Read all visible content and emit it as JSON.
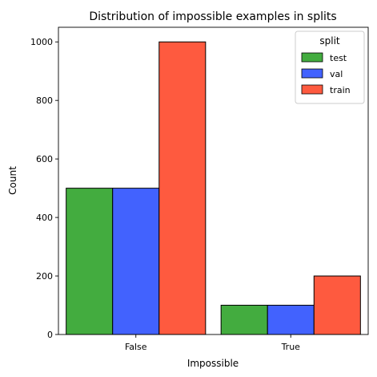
{
  "chart_data": {
    "type": "bar",
    "title": "Distribution of impossible examples in splits",
    "xlabel": "Impossible",
    "ylabel": "Count",
    "categories": [
      "False",
      "True"
    ],
    "series": [
      {
        "name": "test",
        "values": [
          500,
          100
        ],
        "color": "#43ac3f"
      },
      {
        "name": "val",
        "values": [
          500,
          100
        ],
        "color": "#4262fe"
      },
      {
        "name": "train",
        "values": [
          1000,
          200
        ],
        "color": "#fe5a3f"
      }
    ],
    "ylim": [
      0,
      1050
    ],
    "yticks": [
      0,
      200,
      400,
      600,
      800,
      1000
    ],
    "grid": false,
    "legend": {
      "title": "split",
      "placement": "top-right"
    },
    "bar_edge_color": "#000000"
  }
}
